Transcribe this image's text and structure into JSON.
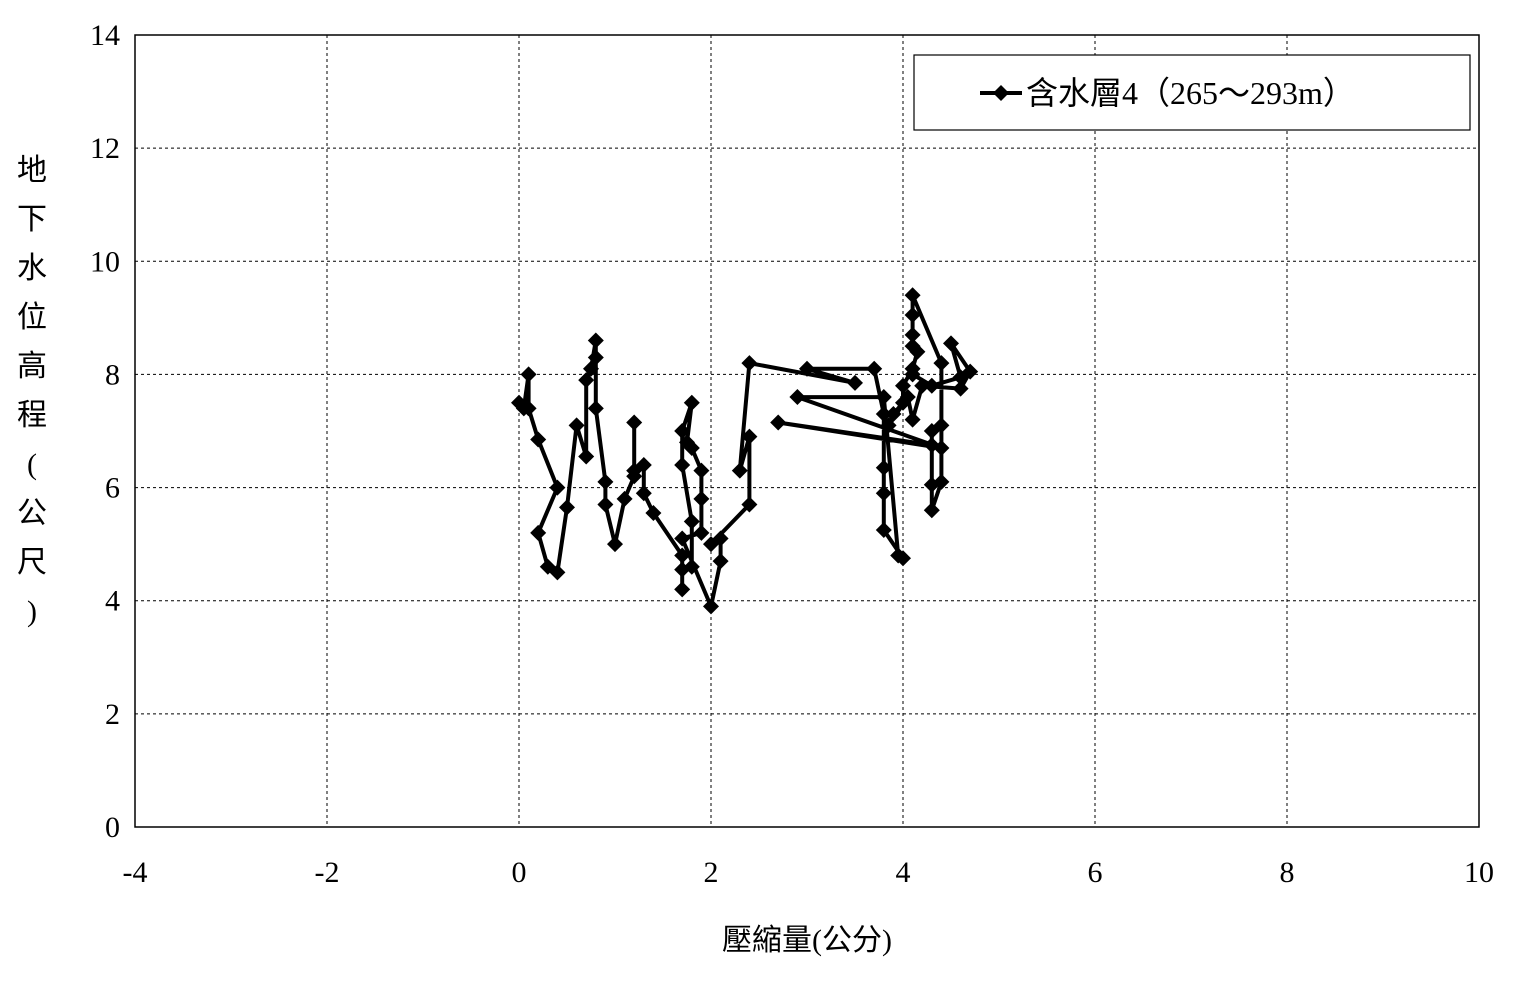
{
  "chart_data": {
    "type": "line",
    "title": "",
    "xlabel": "壓縮量(公分)",
    "ylabel": "地下水位高程(公尺)",
    "xlim": [
      -4,
      10
    ],
    "ylim": [
      0,
      14
    ],
    "xticks": [
      -4,
      -2,
      0,
      2,
      4,
      6,
      8,
      10
    ],
    "yticks": [
      0,
      2,
      4,
      6,
      8,
      10,
      12,
      14
    ],
    "grid": true,
    "legend_position": "top-right",
    "marker": "diamond",
    "color": "#000000",
    "series": [
      {
        "name": "含水層4（265～293m）",
        "points": [
          [
            0.0,
            7.5
          ],
          [
            0.05,
            7.4
          ],
          [
            0.1,
            8.0
          ],
          [
            0.1,
            7.4
          ],
          [
            0.2,
            6.85
          ],
          [
            0.4,
            6.0
          ],
          [
            0.2,
            5.2
          ],
          [
            0.3,
            4.6
          ],
          [
            0.4,
            4.5
          ],
          [
            0.5,
            5.65
          ],
          [
            0.6,
            7.1
          ],
          [
            0.7,
            6.55
          ],
          [
            0.7,
            7.9
          ],
          [
            0.75,
            8.1
          ],
          [
            0.8,
            8.6
          ],
          [
            0.8,
            8.3
          ],
          [
            0.8,
            7.4
          ],
          [
            0.9,
            6.1
          ],
          [
            0.9,
            5.7
          ],
          [
            1.0,
            5.0
          ],
          [
            1.1,
            5.8
          ],
          [
            1.2,
            6.2
          ],
          [
            1.2,
            7.15
          ],
          [
            1.2,
            6.3
          ],
          [
            1.3,
            6.4
          ],
          [
            1.3,
            5.9
          ],
          [
            1.4,
            5.55
          ],
          [
            1.7,
            4.8
          ],
          [
            1.7,
            4.2
          ],
          [
            1.7,
            4.55
          ],
          [
            1.8,
            4.6
          ],
          [
            1.8,
            5.4
          ],
          [
            1.7,
            6.4
          ],
          [
            1.7,
            7.0
          ],
          [
            1.8,
            7.5
          ],
          [
            1.75,
            6.8
          ],
          [
            1.8,
            6.7
          ],
          [
            1.9,
            6.3
          ],
          [
            1.9,
            5.8
          ],
          [
            1.9,
            5.2
          ],
          [
            1.7,
            5.1
          ],
          [
            2.0,
            3.9
          ],
          [
            2.1,
            4.7
          ],
          [
            2.1,
            5.1
          ],
          [
            2.0,
            5.0
          ],
          [
            2.4,
            5.7
          ],
          [
            2.4,
            6.9
          ],
          [
            2.3,
            6.3
          ],
          [
            2.4,
            8.2
          ],
          [
            3.5,
            7.85
          ],
          [
            3.0,
            8.1
          ],
          [
            3.7,
            8.1
          ],
          [
            3.8,
            7.3
          ],
          [
            3.8,
            6.35
          ],
          [
            3.8,
            5.9
          ],
          [
            3.8,
            5.25
          ],
          [
            4.0,
            4.75
          ],
          [
            3.95,
            4.8
          ],
          [
            3.8,
            7.6
          ],
          [
            2.9,
            7.6
          ],
          [
            4.4,
            6.7
          ],
          [
            2.7,
            7.15
          ],
          [
            4.3,
            6.75
          ],
          [
            4.3,
            7.0
          ],
          [
            4.3,
            6.05
          ],
          [
            4.3,
            5.6
          ],
          [
            4.4,
            6.1
          ],
          [
            4.4,
            7.1
          ],
          [
            4.4,
            8.2
          ],
          [
            4.1,
            9.4
          ],
          [
            4.1,
            9.05
          ],
          [
            4.1,
            8.7
          ],
          [
            4.1,
            8.5
          ],
          [
            4.15,
            8.4
          ],
          [
            4.1,
            8.1
          ],
          [
            4.0,
            7.8
          ],
          [
            4.0,
            7.5
          ],
          [
            3.9,
            7.3
          ],
          [
            3.85,
            7.1
          ],
          [
            4.05,
            7.6
          ],
          [
            4.1,
            7.2
          ],
          [
            4.2,
            7.8
          ],
          [
            4.6,
            7.75
          ],
          [
            4.7,
            8.05
          ],
          [
            4.5,
            8.55
          ],
          [
            4.6,
            7.95
          ],
          [
            4.3,
            7.8
          ],
          [
            4.1,
            8.0
          ]
        ]
      }
    ]
  }
}
